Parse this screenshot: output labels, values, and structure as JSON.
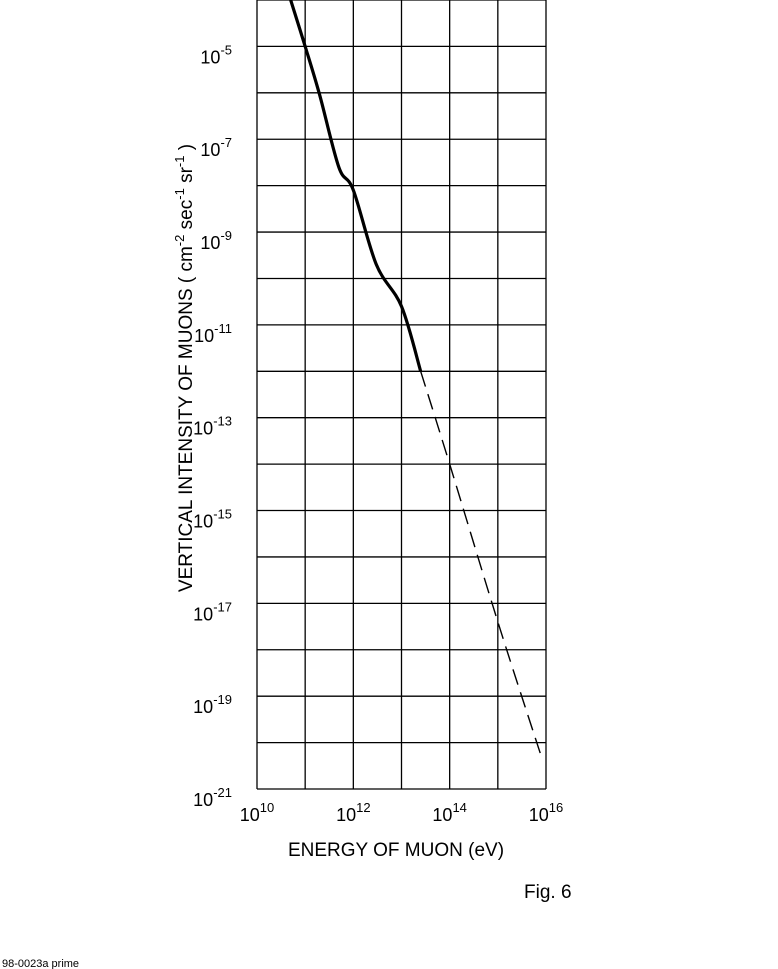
{
  "chart_data": {
    "type": "line",
    "title": "",
    "x_scale": "log",
    "y_scale": "log",
    "xlim": [
      10000000000.0,
      1e+16
    ],
    "ylim": [
      1e-21,
      0.0001
    ],
    "grid": true,
    "legend": "none",
    "xlabel": "ENERGY OF MUON  (eV)",
    "ylabel": {
      "main": "VERTICAL INTENSITY OF MUONS  ( cm",
      "sup1": "-2",
      "mid": "  sec",
      "sup2": "-1",
      "mid2": "  sr",
      "sup3": "-1",
      "end": "  )"
    },
    "x_ticks": [
      {
        "base": "10",
        "exp": "10"
      },
      {
        "base": "10",
        "exp": "12"
      },
      {
        "base": "10",
        "exp": "14"
      },
      {
        "base": "10",
        "exp": "16"
      }
    ],
    "y_ticks": [
      {
        "base": "10",
        "exp": "-5"
      },
      {
        "base": "10",
        "exp": "-7"
      },
      {
        "base": "10",
        "exp": "-9"
      },
      {
        "base": "10",
        "exp": "-11"
      },
      {
        "base": "10",
        "exp": "-13"
      },
      {
        "base": "10",
        "exp": "-15"
      },
      {
        "base": "10",
        "exp": "-17"
      },
      {
        "base": "10",
        "exp": "-19"
      },
      {
        "base": "10",
        "exp": "-21"
      }
    ],
    "series": [
      {
        "style": "solid",
        "points": [
          [
            50000000000.0,
            0.0001
          ],
          [
            100000000000.0,
            1e-05
          ],
          [
            200000000000.0,
            9e-07
          ],
          [
            500000000000.0,
            2.5e-08
          ],
          [
            1000000000000.0,
            8e-09
          ],
          [
            3000000000000.0,
            2e-10
          ],
          [
            10000000000000.0,
            2.5e-11
          ],
          [
            25000000000000.0,
            1e-12
          ]
        ]
      },
      {
        "style": "dashed",
        "points": [
          [
            25000000000000.0,
            1e-12
          ],
          [
            100000000000000.0,
            1e-14
          ],
          [
            1000000000000000.0,
            4e-18
          ],
          [
            8000000000000000.0,
            5e-21
          ]
        ]
      }
    ]
  },
  "caption": "Fig.  6",
  "doc_id": "98-0023a prime"
}
